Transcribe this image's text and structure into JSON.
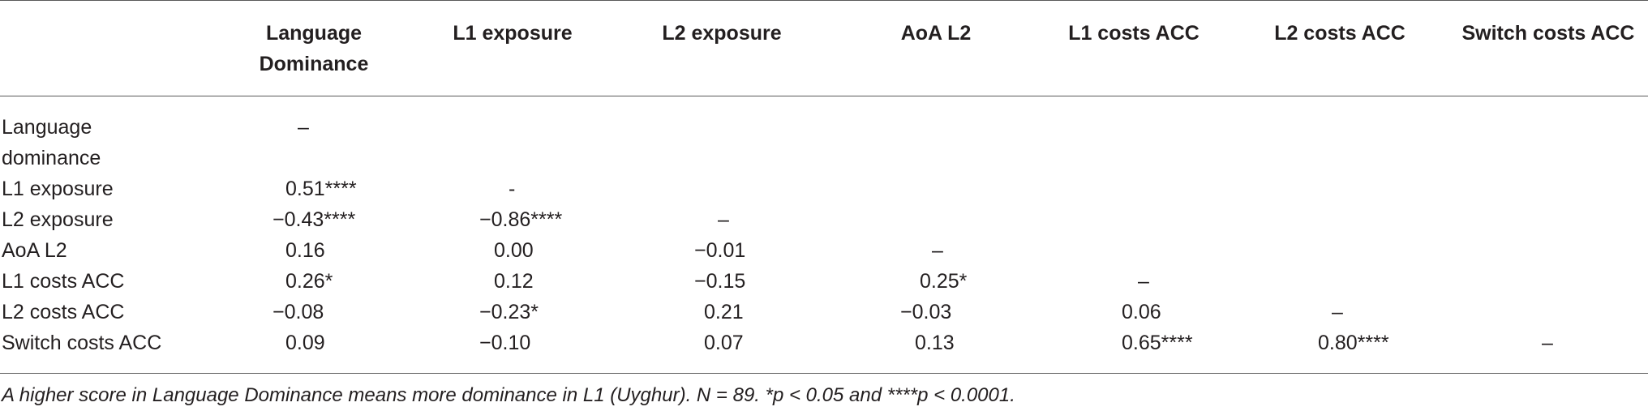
{
  "table": {
    "headers": [
      "Language\nDominance",
      "L1 exposure",
      "L2 exposure",
      "AoA L2",
      "L1 costs ACC",
      "L2 costs ACC",
      "Switch costs ACC"
    ],
    "rows": [
      {
        "label": "Language\ndominance",
        "cells": [
          "–",
          "",
          "",
          "",
          "",
          "",
          ""
        ]
      },
      {
        "label": "L1 exposure",
        "cells": [
          "0.51****",
          "-",
          "",
          "",
          "",
          "",
          ""
        ]
      },
      {
        "label": "L2 exposure",
        "cells": [
          "−0.43****",
          "−0.86****",
          "–",
          "",
          "",
          "",
          ""
        ]
      },
      {
        "label": "AoA L2",
        "cells": [
          "0.16",
          "0.00",
          "−0.01",
          "–",
          "",
          "",
          ""
        ]
      },
      {
        "label": "L1 costs ACC",
        "cells": [
          "0.26*",
          "0.12",
          "−0.15",
          "0.25*",
          "–",
          "",
          ""
        ]
      },
      {
        "label": "L2 costs ACC",
        "cells": [
          "−0.08",
          "−0.23*",
          "0.21",
          "−0.03",
          "0.06",
          "–",
          ""
        ]
      },
      {
        "label": "Switch costs ACC",
        "cells": [
          "0.09",
          "−0.10",
          "0.07",
          "0.13",
          "0.65****",
          "0.80****",
          "–"
        ]
      }
    ]
  },
  "footnote": "A higher score in Language Dominance means more dominance in L1 (Uyghur). N = 89. *p < 0.05 and ****p < 0.0001."
}
